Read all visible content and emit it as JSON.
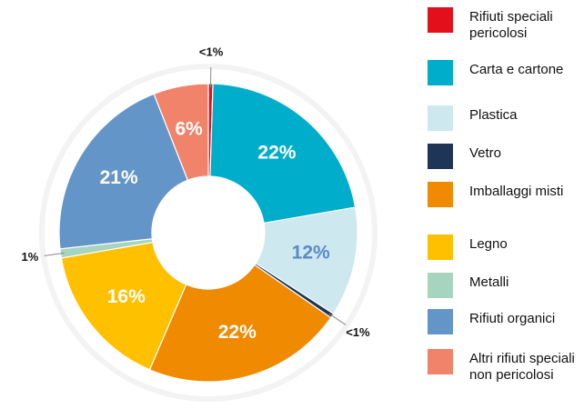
{
  "chart_data": {
    "type": "donut",
    "categories": [
      "Rifiuti speciali pericolosi",
      "Carta e cartone",
      "Plastica",
      "Vetro",
      "Imballaggi misti",
      "Legno",
      "Metalli",
      "Rifiuti organici",
      "Altri rifiuti speciali non pericolosi"
    ],
    "values": [
      0.5,
      22,
      12,
      0.5,
      22,
      16,
      1,
      21,
      6
    ],
    "value_labels": [
      "<1%",
      "22%",
      "12%",
      "<1%",
      "22%",
      "16%",
      "1%",
      "21%",
      "6%"
    ],
    "colors": [
      "#e30f1b",
      "#00aecc",
      "#cde8ee",
      "#1e3557",
      "#f08a00",
      "#ffc000",
      "#a6d4bf",
      "#6495c9",
      "#f0836a"
    ],
    "legend": "right"
  }
}
